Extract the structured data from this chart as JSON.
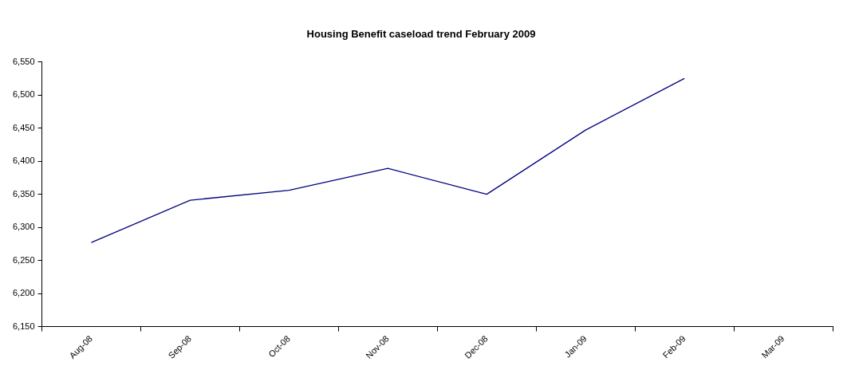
{
  "chart_data": {
    "type": "line",
    "title": "Housing Benefit caseload trend February 2009",
    "categories": [
      "Aug-08",
      "Sep-08",
      "Oct-08",
      "Nov-08",
      "Dec-08",
      "Jan-09",
      "Feb-09",
      "Mar-09"
    ],
    "series": [
      {
        "color": "#000080",
        "values": [
          6277,
          6341,
          6356,
          6389,
          6350,
          6447,
          6525,
          null
        ]
      }
    ],
    "ylim": [
      6150,
      6550
    ],
    "yticks": [
      {
        "value": 6150,
        "label": "6,150"
      },
      {
        "value": 6200,
        "label": "6,200"
      },
      {
        "value": 6250,
        "label": "6,250"
      },
      {
        "value": 6300,
        "label": "6,300"
      },
      {
        "value": 6350,
        "label": "6,350"
      },
      {
        "value": 6400,
        "label": "6,400"
      },
      {
        "value": 6450,
        "label": "6,450"
      },
      {
        "value": 6500,
        "label": "6,500"
      },
      {
        "value": 6550,
        "label": "6,550"
      }
    ],
    "grid": false,
    "legend": false,
    "marker": "none",
    "line_style": "solid"
  }
}
